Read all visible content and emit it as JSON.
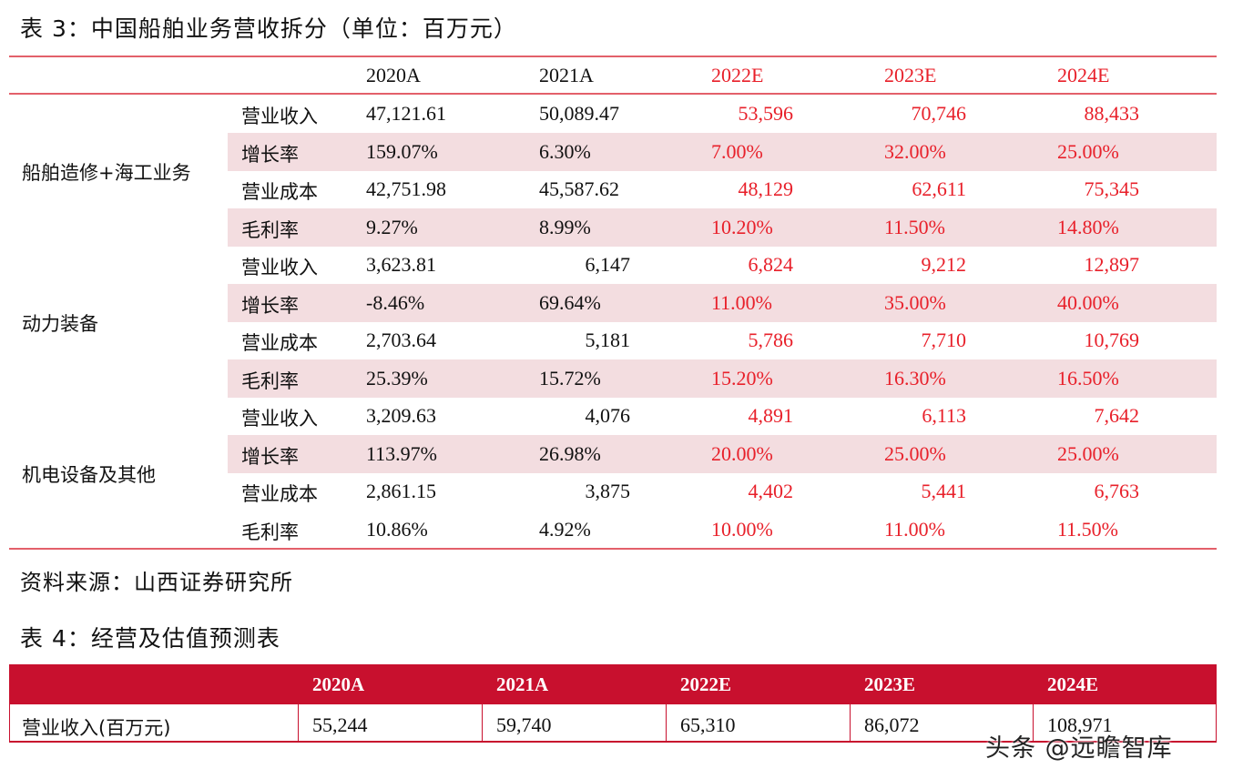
{
  "table3": {
    "title": "表 3：中国船舶业务营收拆分（单位：百万元）",
    "headers": [
      "2020A",
      "2021A",
      "2022E",
      "2023E",
      "2024E"
    ],
    "segments": [
      {
        "name": "船舶造修+海工业务",
        "rows": [
          {
            "metric": "营业收入",
            "values": [
              "47,121.61",
              "50,089.47",
              "53,596",
              "70,746",
              "88,433"
            ]
          },
          {
            "metric": "增长率",
            "values": [
              "159.07%",
              "6.30%",
              "7.00%",
              "32.00%",
              "25.00%"
            ]
          },
          {
            "metric": "营业成本",
            "values": [
              "42,751.98",
              "45,587.62",
              "48,129",
              "62,611",
              "75,345"
            ]
          },
          {
            "metric": "毛利率",
            "values": [
              "9.27%",
              "8.99%",
              "10.20%",
              "11.50%",
              "14.80%"
            ]
          }
        ]
      },
      {
        "name": "动力装备",
        "rows": [
          {
            "metric": "营业收入",
            "values": [
              "3,623.81",
              "6,147",
              "6,824",
              "9,212",
              "12,897"
            ]
          },
          {
            "metric": "增长率",
            "values": [
              "-8.46%",
              "69.64%",
              "11.00%",
              "35.00%",
              "40.00%"
            ]
          },
          {
            "metric": "营业成本",
            "values": [
              "2,703.64",
              "5,181",
              "5,786",
              "7,710",
              "10,769"
            ]
          },
          {
            "metric": "毛利率",
            "values": [
              "25.39%",
              "15.72%",
              "15.20%",
              "16.30%",
              "16.50%"
            ]
          }
        ]
      },
      {
        "name": "机电设备及其他",
        "rows": [
          {
            "metric": "营业收入",
            "values": [
              "3,209.63",
              "4,076",
              "4,891",
              "6,113",
              "7,642"
            ]
          },
          {
            "metric": "增长率",
            "values": [
              "113.97%",
              "26.98%",
              "20.00%",
              "25.00%",
              "25.00%"
            ]
          },
          {
            "metric": "营业成本",
            "values": [
              "2,861.15",
              "3,875",
              "4,402",
              "5,441",
              "6,763"
            ]
          },
          {
            "metric": "毛利率",
            "values": [
              "10.86%",
              "4.92%",
              "10.00%",
              "11.00%",
              "11.50%"
            ]
          }
        ]
      }
    ]
  },
  "source": "资料来源：山西证券研究所",
  "table4": {
    "title": "表 4：经营及估值预测表",
    "headers": [
      "2020A",
      "2021A",
      "2022E",
      "2023E",
      "2024E"
    ],
    "rows": [
      {
        "label": "营业收入(百万元)",
        "values": [
          "55,244",
          "59,740",
          "65,310",
          "86,072",
          "108,971"
        ]
      }
    ]
  },
  "watermark": "头条 @远瞻智库",
  "colors": {
    "accent_red": "#e8202a",
    "header_red": "#c8102e",
    "band_pink": "#f3dde0",
    "rule_red": "#e3606a"
  }
}
